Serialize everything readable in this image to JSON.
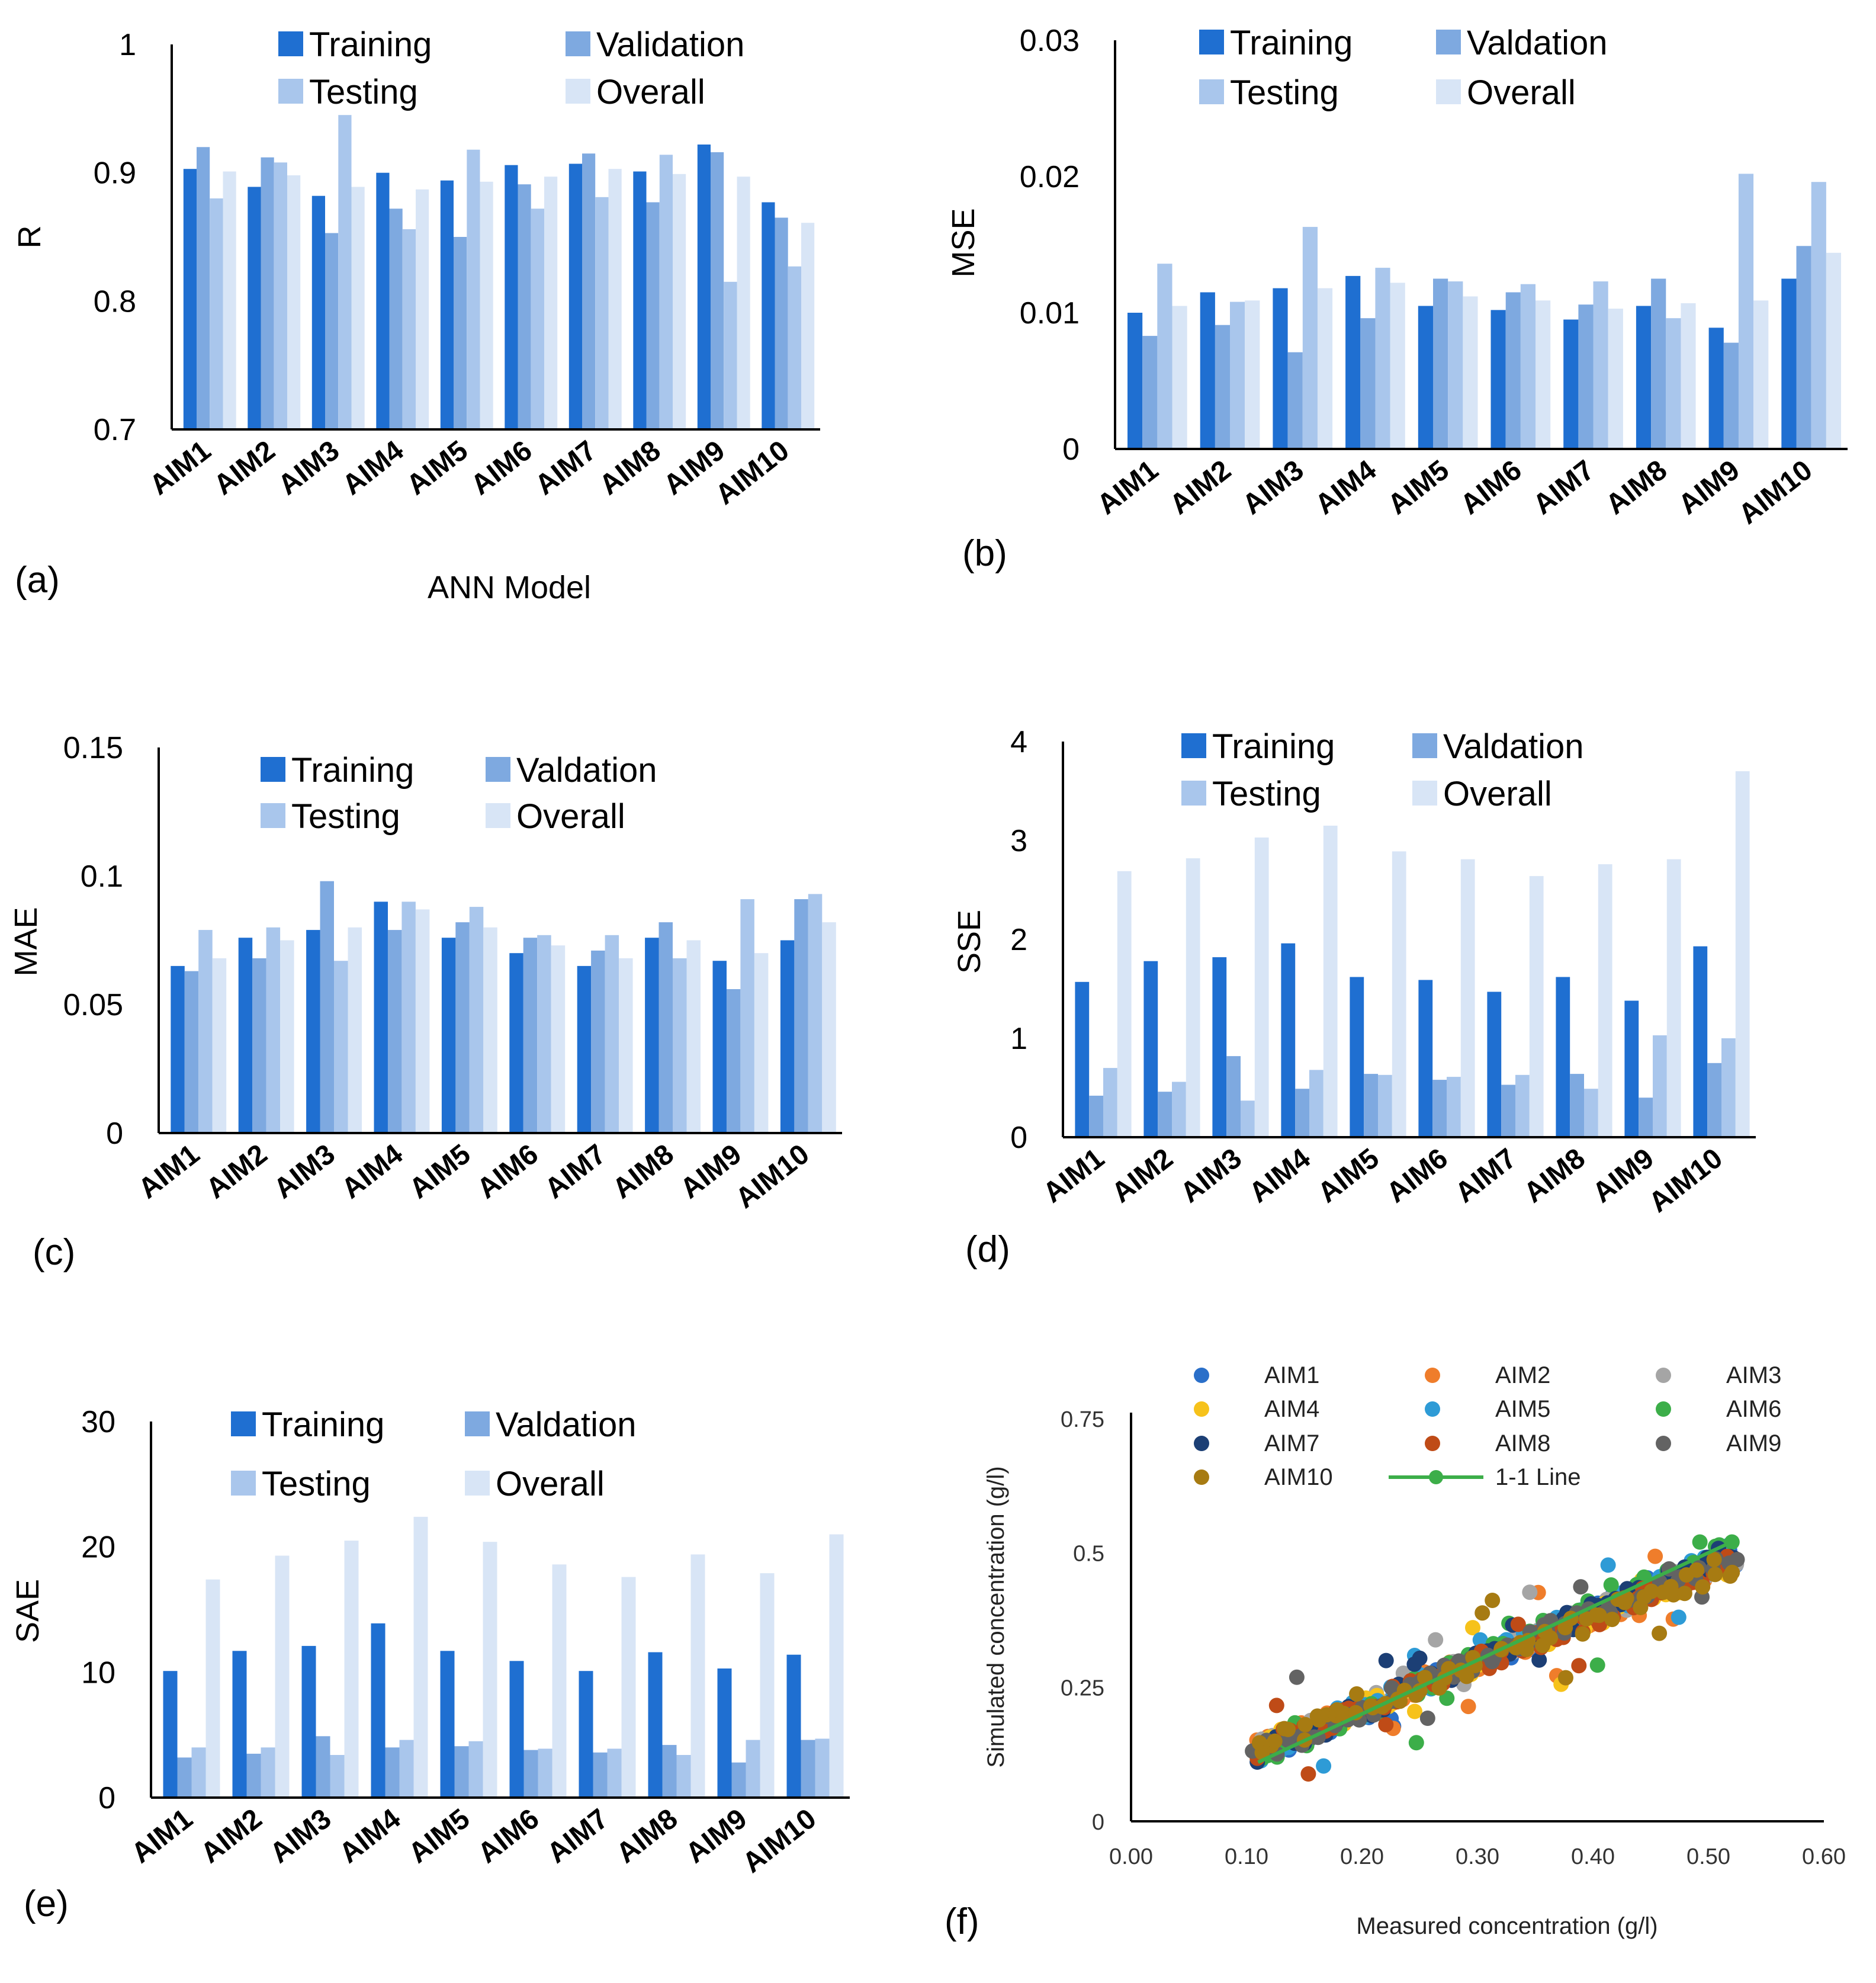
{
  "colors": {
    "training": "#1f6fd1",
    "validation": "#7ea9e0",
    "testing": "#a9c6ec",
    "overall": "#d8e5f6"
  },
  "categories": [
    "AIM1",
    "AIM2",
    "AIM3",
    "AIM4",
    "AIM5",
    "AIM6",
    "AIM7",
    "AIM8",
    "AIM9",
    "AIM10"
  ],
  "chart_data": [
    {
      "id": "a",
      "type": "bar",
      "panel_label": "(a)",
      "ylabel": "R",
      "xlabel": "ANN Model",
      "ylim": [
        0.7,
        1.0
      ],
      "yticks": [
        "0.7",
        "0.8",
        "0.9",
        "1"
      ],
      "ytick_values": [
        0.7,
        0.8,
        0.9,
        1.0
      ],
      "legend": [
        "Training",
        "Validation",
        "Testing",
        "Overall"
      ],
      "series": [
        {
          "name": "Training",
          "values": [
            0.903,
            0.889,
            0.882,
            0.9,
            0.894,
            0.906,
            0.907,
            0.901,
            0.922,
            0.877
          ]
        },
        {
          "name": "Validation",
          "values": [
            0.92,
            0.912,
            0.853,
            0.872,
            0.85,
            0.891,
            0.915,
            0.877,
            0.916,
            0.865
          ]
        },
        {
          "name": "Testing",
          "values": [
            0.88,
            0.908,
            0.945,
            0.856,
            0.918,
            0.872,
            0.881,
            0.914,
            0.815,
            0.827
          ]
        },
        {
          "name": "Overall",
          "values": [
            0.901,
            0.898,
            0.889,
            0.887,
            0.893,
            0.897,
            0.903,
            0.899,
            0.897,
            0.861
          ]
        }
      ]
    },
    {
      "id": "b",
      "type": "bar",
      "panel_label": "(b)",
      "ylabel": "MSE",
      "xlabel": "",
      "ylim": [
        0,
        0.03
      ],
      "yticks": [
        "0",
        "0.01",
        "0.02",
        "0.03"
      ],
      "ytick_values": [
        0,
        0.01,
        0.02,
        0.03
      ],
      "legend": [
        "Training",
        "Valdation",
        "Testing",
        "Overall"
      ],
      "series": [
        {
          "name": "Training",
          "values": [
            0.01,
            0.0115,
            0.0118,
            0.0127,
            0.0105,
            0.0102,
            0.0095,
            0.0105,
            0.0089,
            0.0125
          ]
        },
        {
          "name": "Valdation",
          "values": [
            0.0083,
            0.0091,
            0.0071,
            0.0096,
            0.0125,
            0.0115,
            0.0106,
            0.0125,
            0.0078,
            0.0149
          ]
        },
        {
          "name": "Testing",
          "values": [
            0.0136,
            0.0108,
            0.0163,
            0.0133,
            0.0123,
            0.0121,
            0.0123,
            0.0096,
            0.0202,
            0.0196
          ]
        },
        {
          "name": "Overall",
          "values": [
            0.0105,
            0.0109,
            0.0118,
            0.0122,
            0.0112,
            0.0109,
            0.0103,
            0.0107,
            0.0109,
            0.0144
          ]
        }
      ]
    },
    {
      "id": "c",
      "type": "bar",
      "panel_label": "(c)",
      "ylabel": "MAE",
      "xlabel": "",
      "ylim": [
        0,
        0.15
      ],
      "yticks": [
        "0",
        "0.05",
        "0.1",
        "0.15"
      ],
      "ytick_values": [
        0,
        0.05,
        0.1,
        0.15
      ],
      "legend": [
        "Training",
        "Valdation",
        "Testing",
        "Overall"
      ],
      "series": [
        {
          "name": "Training",
          "values": [
            0.065,
            0.076,
            0.079,
            0.09,
            0.076,
            0.07,
            0.065,
            0.076,
            0.067,
            0.075
          ]
        },
        {
          "name": "Valdation",
          "values": [
            0.063,
            0.068,
            0.098,
            0.079,
            0.082,
            0.076,
            0.071,
            0.082,
            0.056,
            0.091
          ]
        },
        {
          "name": "Testing",
          "values": [
            0.079,
            0.08,
            0.067,
            0.09,
            0.088,
            0.077,
            0.077,
            0.068,
            0.091,
            0.093
          ]
        },
        {
          "name": "Overall",
          "values": [
            0.068,
            0.075,
            0.08,
            0.087,
            0.08,
            0.073,
            0.068,
            0.075,
            0.07,
            0.082
          ]
        }
      ]
    },
    {
      "id": "d",
      "type": "bar",
      "panel_label": "(d)",
      "ylabel": "SSE",
      "xlabel": "",
      "ylim": [
        0,
        4
      ],
      "yticks": [
        "0",
        "1",
        "2",
        "3",
        "4"
      ],
      "ytick_values": [
        0,
        1,
        2,
        3,
        4
      ],
      "legend": [
        "Training",
        "Valdation",
        "Testing",
        "Overall"
      ],
      "series": [
        {
          "name": "Training",
          "values": [
            1.57,
            1.78,
            1.82,
            1.96,
            1.62,
            1.59,
            1.47,
            1.62,
            1.38,
            1.93
          ]
        },
        {
          "name": "Valdation",
          "values": [
            0.42,
            0.46,
            0.82,
            0.49,
            0.64,
            0.58,
            0.53,
            0.64,
            0.4,
            0.75
          ]
        },
        {
          "name": "Testing",
          "values": [
            0.7,
            0.56,
            0.37,
            0.68,
            0.63,
            0.61,
            0.63,
            0.49,
            1.03,
            1.0
          ]
        },
        {
          "name": "Overall",
          "values": [
            2.69,
            2.82,
            3.03,
            3.15,
            2.89,
            2.81,
            2.64,
            2.76,
            2.81,
            3.7
          ]
        }
      ]
    },
    {
      "id": "e",
      "type": "bar",
      "panel_label": "(e)",
      "ylabel": "SAE",
      "xlabel": "",
      "ylim": [
        0,
        30
      ],
      "yticks": [
        "0",
        "10",
        "20",
        "30"
      ],
      "ytick_values": [
        0,
        10,
        20,
        30
      ],
      "legend": [
        "Training",
        "Valdation",
        "Testing",
        "Overall"
      ],
      "series": [
        {
          "name": "Training",
          "values": [
            10.1,
            11.7,
            12.1,
            13.9,
            11.7,
            10.9,
            10.1,
            11.6,
            10.3,
            11.4
          ]
        },
        {
          "name": "Valdation",
          "values": [
            3.2,
            3.5,
            4.9,
            4.0,
            4.1,
            3.8,
            3.6,
            4.2,
            2.8,
            4.6
          ]
        },
        {
          "name": "Testing",
          "values": [
            4.0,
            4.0,
            3.4,
            4.6,
            4.5,
            3.9,
            3.9,
            3.4,
            4.6,
            4.7
          ]
        },
        {
          "name": "Overall",
          "values": [
            17.4,
            19.3,
            20.5,
            22.4,
            20.4,
            18.6,
            17.6,
            19.4,
            17.9,
            21.0
          ]
        }
      ]
    },
    {
      "id": "f",
      "type": "scatter",
      "panel_label": "(f)",
      "xlabel": "Measured concentration (g/l)",
      "ylabel": "Simulated concentration (g/l)",
      "xlim": [
        0,
        0.6
      ],
      "ylim": [
        0,
        0.75
      ],
      "xticks": [
        "0.00",
        "0.10",
        "0.20",
        "0.30",
        "0.40",
        "0.50",
        "0.60"
      ],
      "xtick_values": [
        0,
        0.1,
        0.2,
        0.3,
        0.4,
        0.5,
        0.6
      ],
      "yticks": [
        "0",
        "0.25",
        "0.5",
        "0.75"
      ],
      "ytick_values": [
        0,
        0.25,
        0.5,
        0.75
      ],
      "series": [
        {
          "name": "AIM1",
          "color": "#2a6fc9",
          "slope": 0.93,
          "intercept": 0.018
        },
        {
          "name": "AIM2",
          "color": "#ef7d2b",
          "slope": 0.86,
          "intercept": 0.04
        },
        {
          "name": "AIM3",
          "color": "#a5a5a5",
          "slope": 0.88,
          "intercept": 0.035
        },
        {
          "name": "AIM4",
          "color": "#f6c21b",
          "slope": 0.84,
          "intercept": 0.045
        },
        {
          "name": "AIM5",
          "color": "#2e9bd6",
          "slope": 0.9,
          "intercept": 0.03
        },
        {
          "name": "AIM6",
          "color": "#3cae49",
          "slope": 0.97,
          "intercept": 0.01
        },
        {
          "name": "AIM7",
          "color": "#1c3f75",
          "slope": 0.92,
          "intercept": 0.022
        },
        {
          "name": "AIM8",
          "color": "#bf4b17",
          "slope": 0.85,
          "intercept": 0.04
        },
        {
          "name": "AIM9",
          "color": "#636363",
          "slope": 0.91,
          "intercept": 0.026
        },
        {
          "name": "AIM10",
          "color": "#a77b12",
          "slope": 0.82,
          "intercept": 0.048
        }
      ],
      "line": {
        "name": "1-1 Line",
        "color": "#3cae49"
      },
      "x_range": [
        0.11,
        0.52
      ]
    }
  ]
}
